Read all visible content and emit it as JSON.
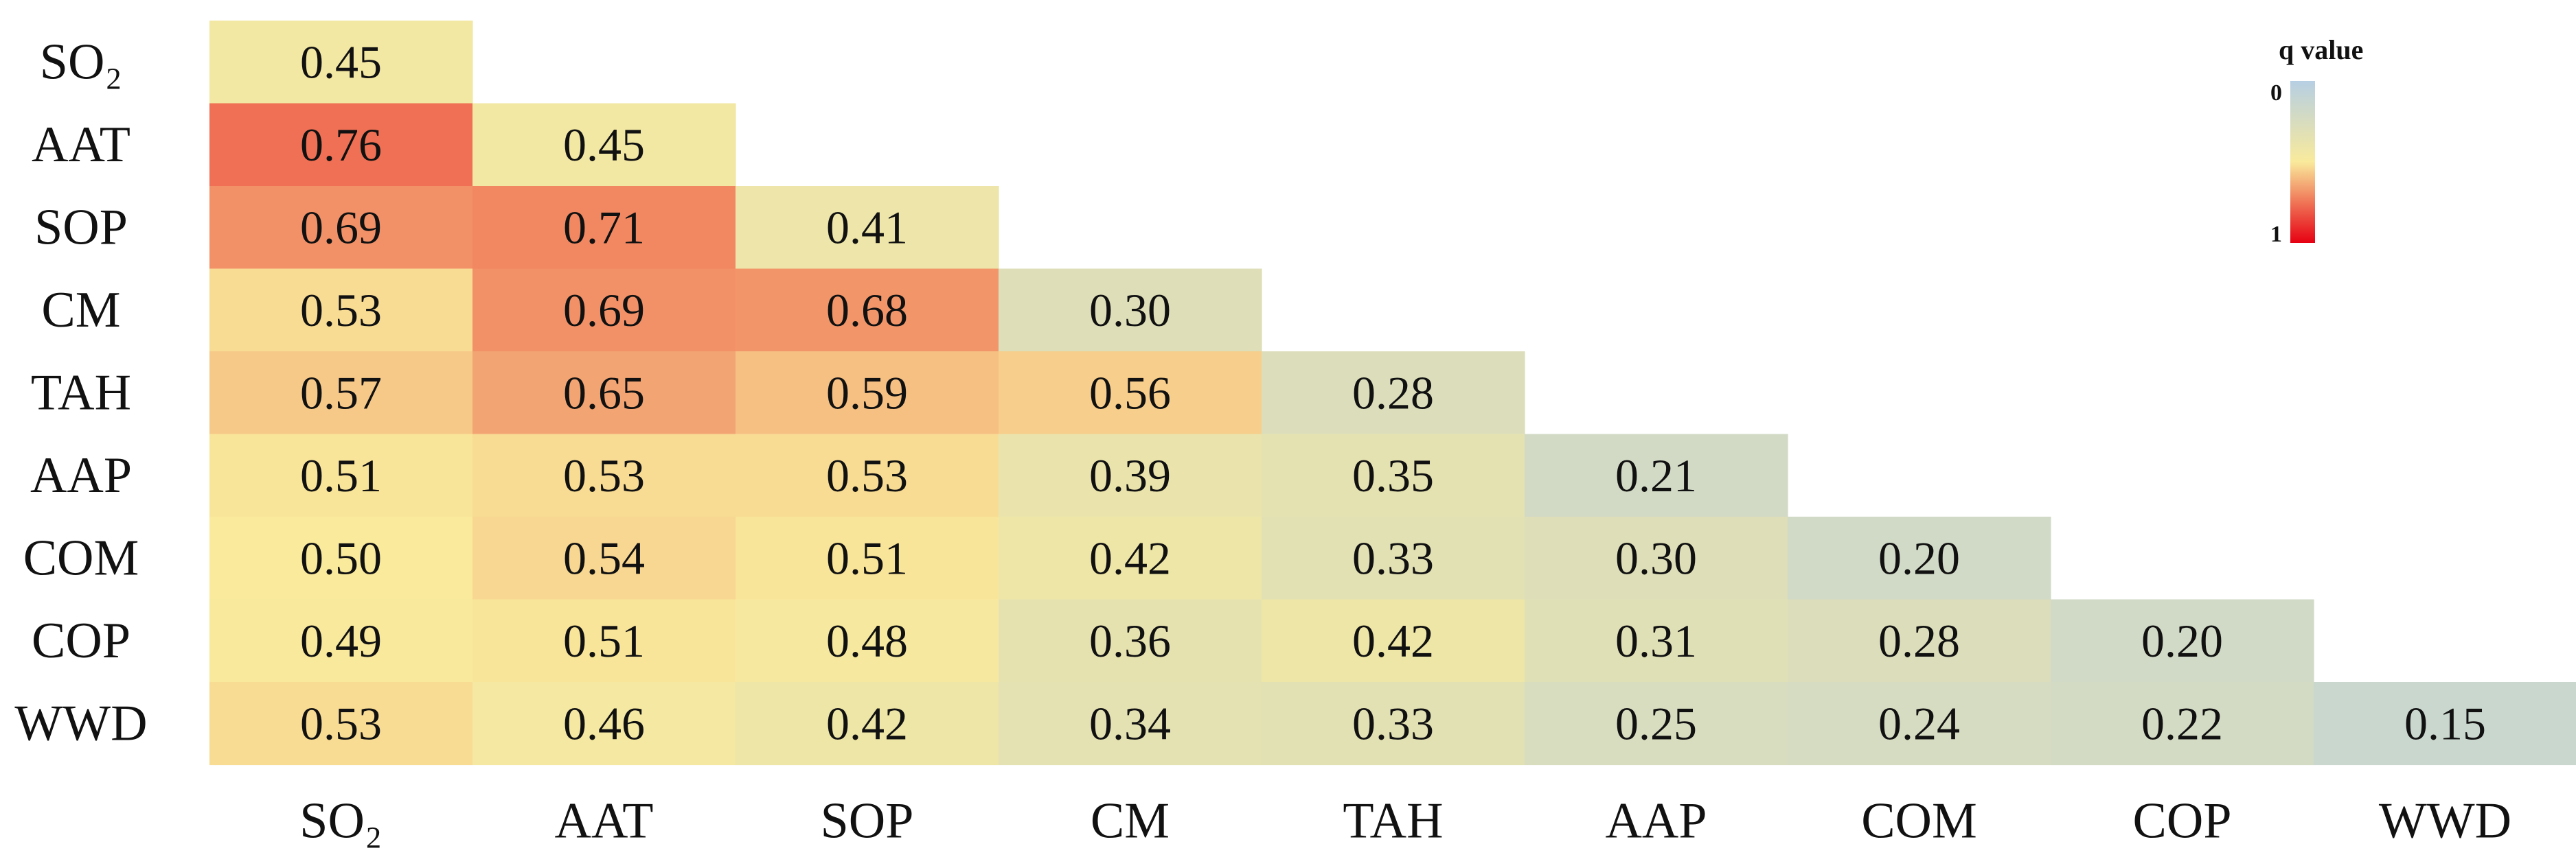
{
  "chart_data": {
    "type": "heatmap",
    "layout": "lower-triangular",
    "variables": [
      "SO₂",
      "AAT",
      "SOP",
      "CM",
      "TAH",
      "AAP",
      "COM",
      "COP",
      "WWD"
    ],
    "row_labels": [
      "SO₂",
      "AAT",
      "SOP",
      "CM",
      "TAH",
      "AAP",
      "COM",
      "COP",
      "WWD"
    ],
    "col_labels": [
      "SO₂",
      "AAT",
      "SOP",
      "CM",
      "TAH",
      "AAP",
      "COM",
      "COP",
      "WWD"
    ],
    "values": [
      [
        0.45
      ],
      [
        0.76,
        0.45
      ],
      [
        0.69,
        0.71,
        0.41
      ],
      [
        0.53,
        0.69,
        0.68,
        0.3
      ],
      [
        0.57,
        0.65,
        0.59,
        0.56,
        0.28
      ],
      [
        0.51,
        0.53,
        0.53,
        0.39,
        0.35,
        0.21
      ],
      [
        0.5,
        0.54,
        0.51,
        0.42,
        0.33,
        0.3,
        0.2
      ],
      [
        0.49,
        0.51,
        0.48,
        0.36,
        0.42,
        0.31,
        0.28,
        0.2
      ],
      [
        0.53,
        0.46,
        0.42,
        0.34,
        0.33,
        0.25,
        0.24,
        0.22,
        0.15
      ]
    ],
    "value_labels": [
      [
        "0.45"
      ],
      [
        "0.76",
        "0.45"
      ],
      [
        "0.69",
        "0.71",
        "0.41"
      ],
      [
        "0.53",
        "0.69",
        "0.68",
        "0.30"
      ],
      [
        "0.57",
        "0.65",
        "0.59",
        "0.56",
        "0.28"
      ],
      [
        "0.51",
        "0.53",
        "0.53",
        "0.39",
        "0.35",
        "0.21"
      ],
      [
        "0.50",
        "0.54",
        "0.51",
        "0.42",
        "0.33",
        "0.30",
        "0.20"
      ],
      [
        "0.49",
        "0.51",
        "0.48",
        "0.36",
        "0.42",
        "0.31",
        "0.28",
        "0.20"
      ],
      [
        "0.53",
        "0.46",
        "0.42",
        "0.34",
        "0.33",
        "0.25",
        "0.24",
        "0.22",
        "0.15"
      ]
    ],
    "colorbar": {
      "title": "q value",
      "min_label": "0",
      "max_label": "1",
      "range": [
        0,
        1
      ],
      "stops": [
        {
          "v": 0.0,
          "color": "#b6cfe3"
        },
        {
          "v": 0.5,
          "color": "#f9ea9c"
        },
        {
          "v": 1.0,
          "color": "#e60012"
        }
      ]
    },
    "legend_position": "top-right",
    "grid": false
  }
}
